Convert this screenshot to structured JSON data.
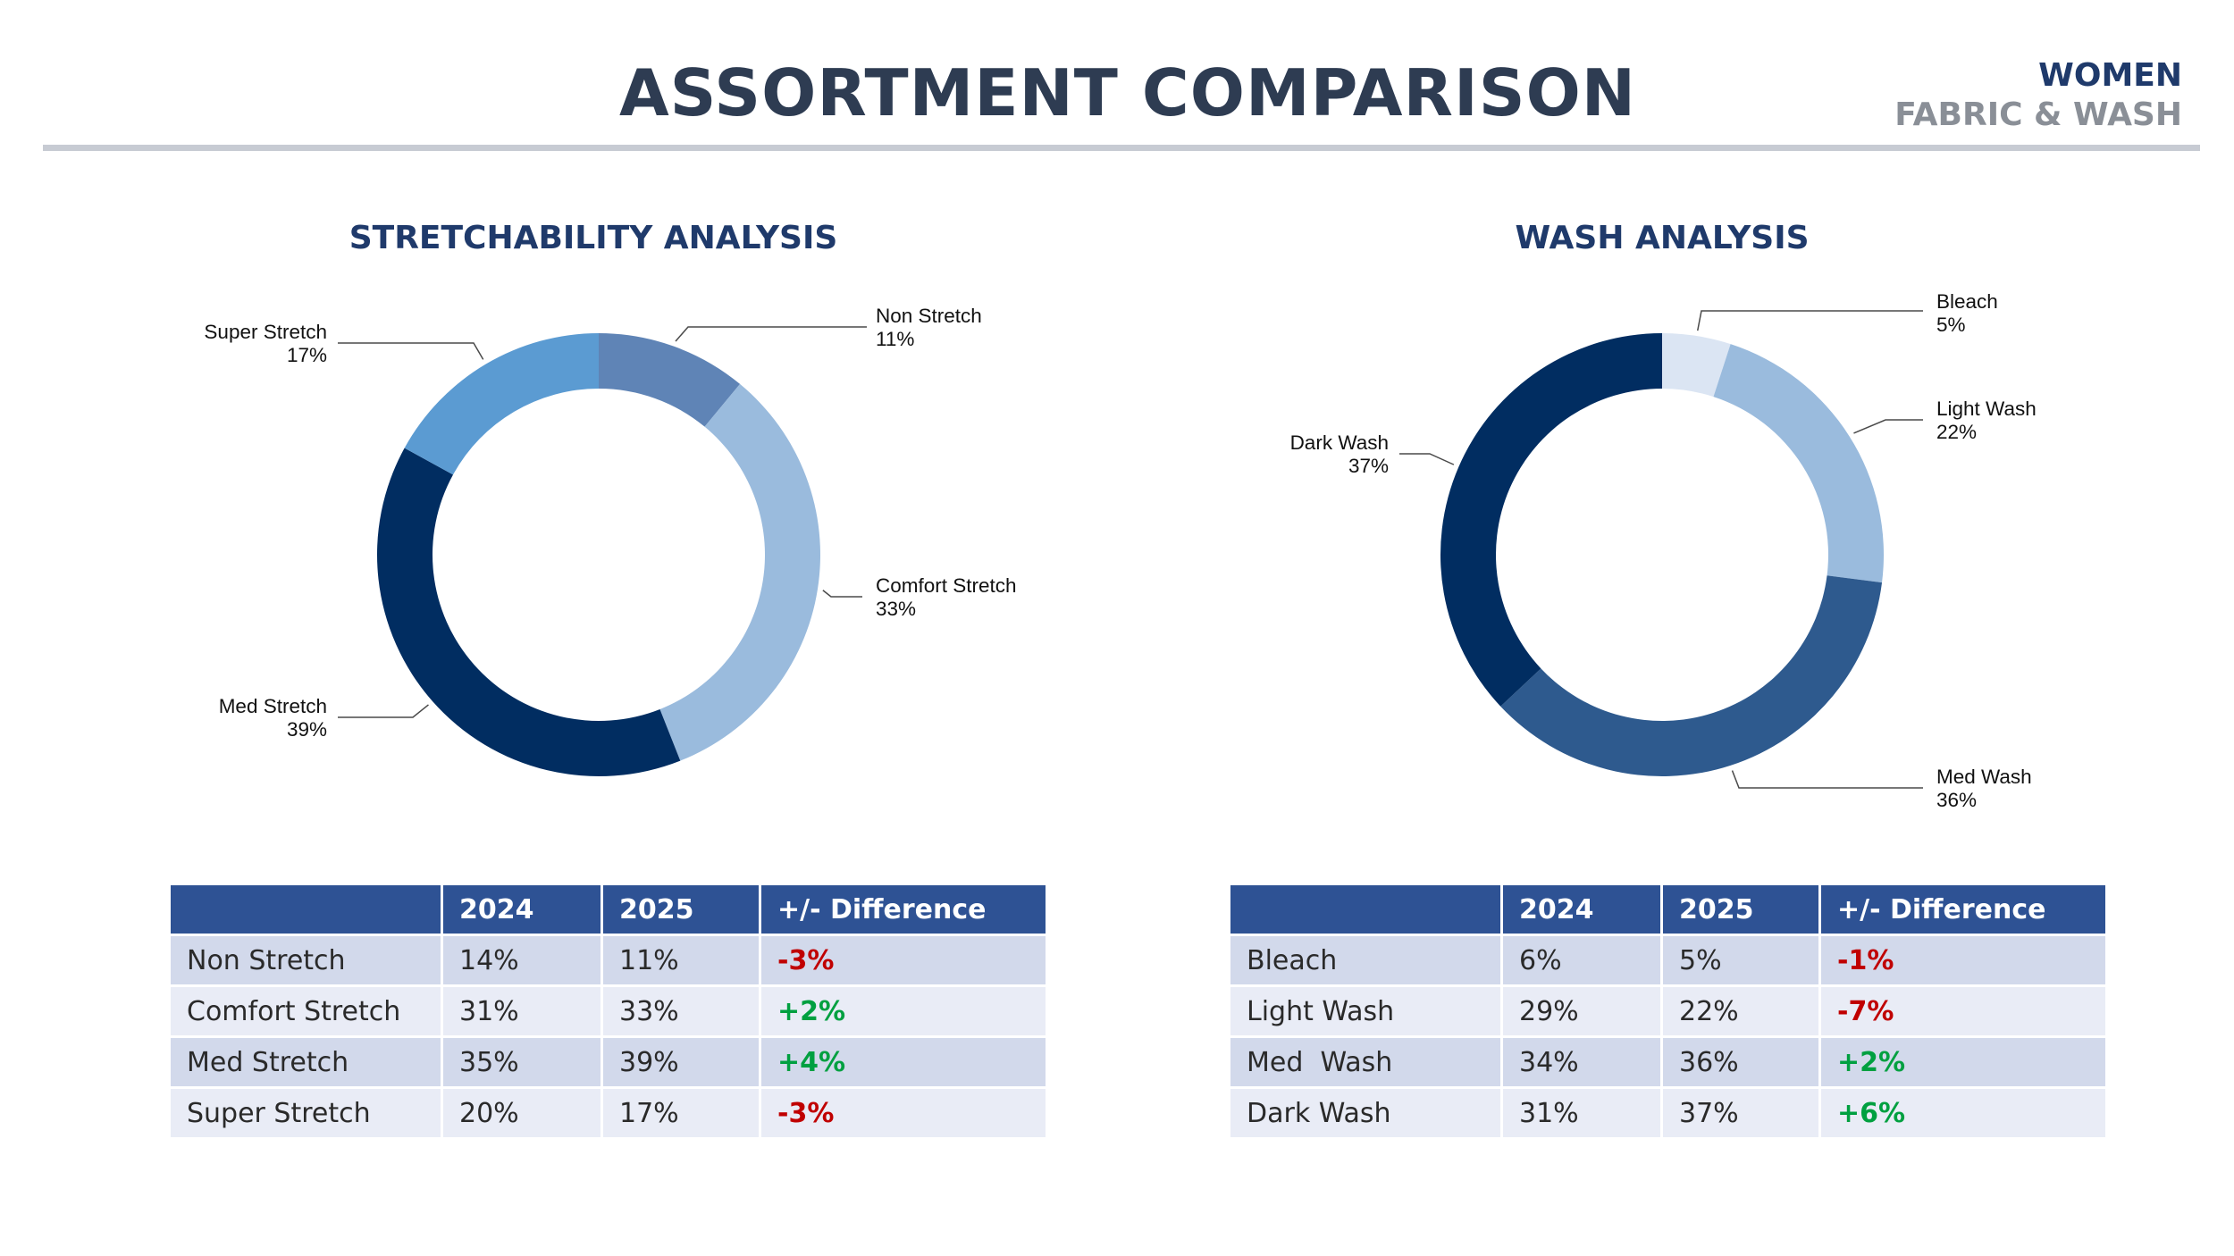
{
  "header": {
    "title": "ASSORTMENT COMPARISON",
    "tag_primary": "WOMEN",
    "tag_secondary": "FABRIC & WASH",
    "colors": {
      "title": "#2e3c52",
      "accent": "#1f3a6b",
      "muted": "#8a8f97",
      "rule": "#c7cbd3"
    }
  },
  "chart_data": [
    {
      "type": "donut",
      "title": "STRETCHABILITY ANALYSIS",
      "categories": [
        "Non Stretch",
        "Comfort Stretch",
        "Med Stretch",
        "Super Stretch"
      ],
      "values": [
        11,
        33,
        39,
        17
      ],
      "labels": [
        "11%",
        "33%",
        "39%",
        "17%"
      ],
      "colors": [
        "#5f84b6",
        "#9abbdd",
        "#012d61",
        "#5b9bd2"
      ],
      "label_position": "outside with leader lines"
    },
    {
      "type": "donut",
      "title": "WASH ANALYSIS",
      "categories": [
        "Bleach",
        "Light Wash",
        "Med Wash",
        "Dark Wash"
      ],
      "values": [
        5,
        22,
        36,
        37
      ],
      "labels": [
        "5%",
        "22%",
        "36%",
        "37%"
      ],
      "colors": [
        "#dbe5f3",
        "#9abbdd",
        "#2e5a8e",
        "#012d61"
      ],
      "label_position": "outside with leader lines"
    }
  ],
  "tables": {
    "stretch": {
      "headers": [
        "",
        "2024",
        "2025",
        "+/- Difference"
      ],
      "rows": [
        {
          "name": "Non Stretch",
          "y2024": "14%",
          "y2025": "11%",
          "diff": "-3%",
          "color": "#c00000"
        },
        {
          "name": "Comfort Stretch",
          "y2024": "31%",
          "y2025": "33%",
          "diff": "+2%",
          "color": "#00a040"
        },
        {
          "name": "Med Stretch",
          "y2024": "35%",
          "y2025": "39%",
          "diff": "+4%",
          "color": "#00a040"
        },
        {
          "name": "Super Stretch",
          "y2024": "20%",
          "y2025": "17%",
          "diff": "-3%",
          "color": "#c00000"
        }
      ]
    },
    "wash": {
      "headers": [
        "",
        "2024",
        "2025",
        "+/- Difference"
      ],
      "rows": [
        {
          "name": "Bleach",
          "y2024": "6%",
          "y2025": "5%",
          "diff": "-1%",
          "color": "#c00000"
        },
        {
          "name": "Light Wash",
          "y2024": "29%",
          "y2025": "22%",
          "diff": "-7%",
          "color": "#c00000"
        },
        {
          "name": "Med  Wash",
          "y2024": "34%",
          "y2025": "36%",
          "diff": "+2%",
          "color": "#00a040"
        },
        {
          "name": "Dark Wash",
          "y2024": "31%",
          "y2025": "37%",
          "diff": "+6%",
          "color": "#00a040"
        }
      ]
    }
  }
}
